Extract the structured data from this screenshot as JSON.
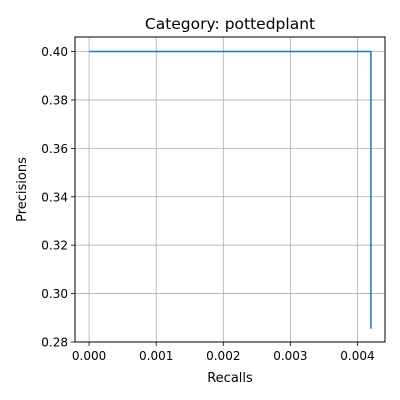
{
  "chart_data": {
    "type": "line",
    "title": "Category: pottedplant",
    "xlabel": "Recalls",
    "ylabel": "Precisions",
    "xlim": [
      -0.00021,
      0.00441
    ],
    "ylim": [
      0.28,
      0.406
    ],
    "x_ticks": [
      0.0,
      0.001,
      0.002,
      0.003,
      0.004
    ],
    "x_tick_labels": [
      "0.000",
      "0.001",
      "0.002",
      "0.003",
      "0.004"
    ],
    "y_ticks": [
      0.28,
      0.3,
      0.32,
      0.34,
      0.36,
      0.38,
      0.4
    ],
    "y_tick_labels": [
      "0.28",
      "0.30",
      "0.32",
      "0.34",
      "0.36",
      "0.38",
      "0.40"
    ],
    "grid": true,
    "series": [
      {
        "color": "#1f77b4",
        "x": [
          0.0,
          0.0042,
          0.0042
        ],
        "y": [
          0.4,
          0.4,
          0.2855
        ]
      }
    ]
  }
}
